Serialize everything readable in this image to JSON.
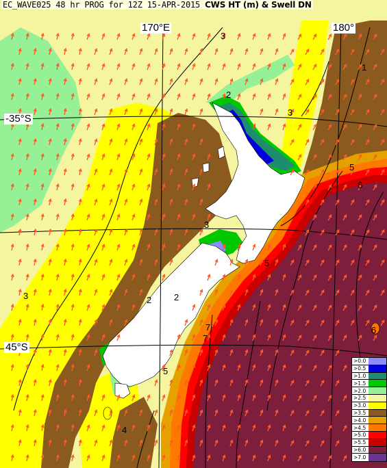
{
  "title": {
    "model": "EC_WAVE025",
    "rest": "48 hr PROG for 12Z 15-APR-2015",
    "field": "CWS HT (m) & Swell DN"
  },
  "longitude_labels": [
    "170°E",
    "180°"
  ],
  "latitude_labels": [
    "-35°S",
    "45°S"
  ],
  "contour_labels": [
    "3",
    "2",
    "1",
    "3",
    "5",
    "6",
    "3",
    "2",
    "3",
    "2",
    "7",
    "5",
    "4",
    "6",
    "5",
    "7"
  ],
  "legend": [
    {
      "label": ">0.0",
      "color": "#8c8cff"
    },
    {
      "label": ">0.5",
      "color": "#0000dd"
    },
    {
      "label": ">1.0",
      "color": "#1e8c6e"
    },
    {
      "label": ">1.5",
      "color": "#00c800"
    },
    {
      "label": ">2.0",
      "color": "#96f096"
    },
    {
      "label": ">2.5",
      "color": "#f5f5a0"
    },
    {
      "label": ">3.0",
      "color": "#ffff00"
    },
    {
      "label": ">3.5",
      "color": "#8b5a1e"
    },
    {
      "label": ">4.0",
      "color": "#e6a000"
    },
    {
      "label": ">4.5",
      "color": "#ff7800"
    },
    {
      "label": ">5.0",
      "color": "#ff0000"
    },
    {
      "label": ">5.5",
      "color": "#c80000"
    },
    {
      "label": ">6.0",
      "color": "#7d1e3c"
    },
    {
      "label": ">7.0",
      "color": "#6e3296"
    }
  ],
  "colors": {
    "land": "#ffffff",
    "arrow": "#ff5a28",
    "ocean_base": "#f5f5a0"
  }
}
